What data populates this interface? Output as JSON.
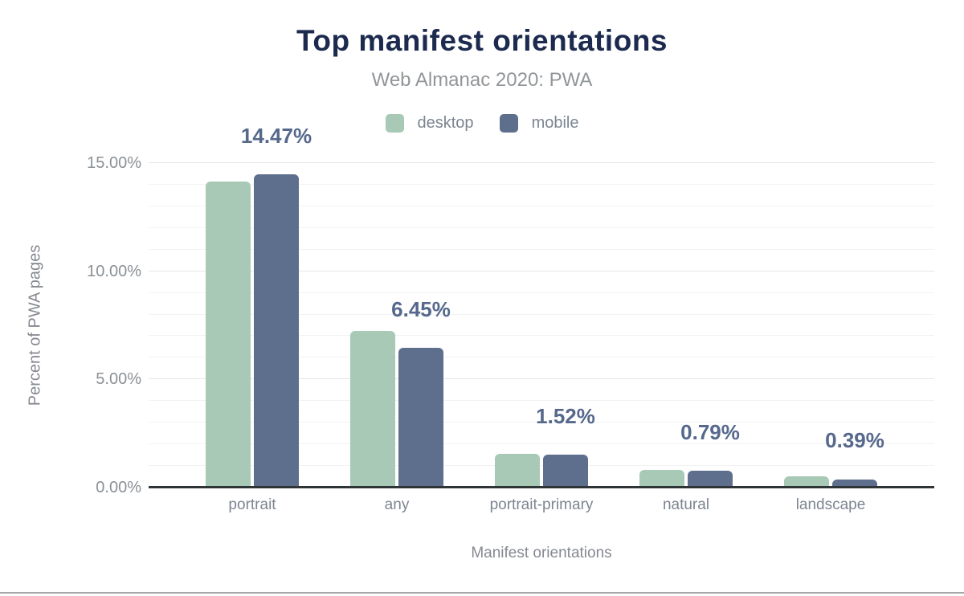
{
  "chart_data": {
    "type": "bar",
    "title": "Top manifest orientations",
    "subtitle": "Web Almanac 2020: PWA",
    "xlabel": "Manifest orientations",
    "ylabel": "Percent of PWA pages",
    "categories": [
      "portrait",
      "any",
      "portrait-primary",
      "natural",
      "landscape"
    ],
    "series": [
      {
        "name": "desktop",
        "color": "#a7c9b6",
        "values": [
          14.16,
          7.25,
          1.56,
          0.81,
          0.51
        ]
      },
      {
        "name": "mobile",
        "color": "#5e6e8d",
        "values": [
          14.47,
          6.45,
          1.52,
          0.79,
          0.39
        ]
      }
    ],
    "data_labels": [
      "14.47%",
      "6.45%",
      "1.52%",
      "0.79%",
      "0.39%"
    ],
    "y_ticks": [
      "0.00%",
      "5.00%",
      "10.00%",
      "15.00%"
    ],
    "ylim": [
      0,
      15
    ],
    "grid": "horizontal, minor every 1%, major every 5%",
    "legend_position": "top",
    "colors": {
      "title": "#1b2a4e",
      "subtitle": "#929699",
      "value_label": "#56688c",
      "axis_text": "#7d8591",
      "axis_line": "#2f3437"
    }
  }
}
